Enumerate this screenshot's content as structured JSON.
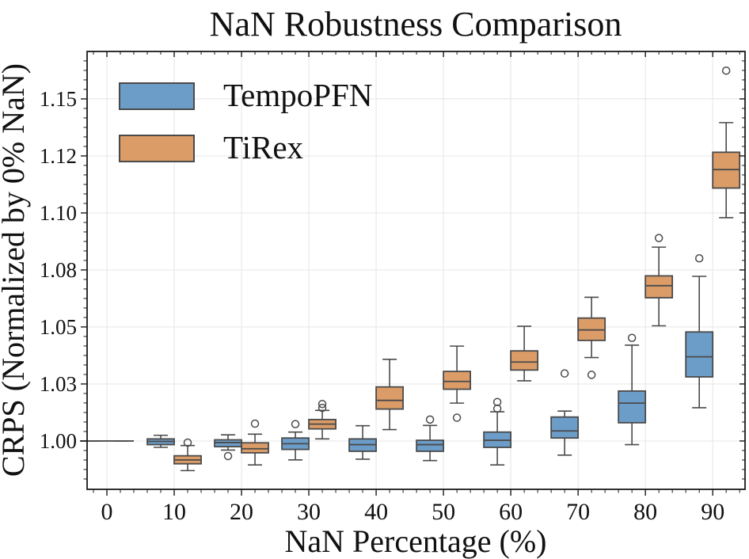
{
  "chart_data": {
    "type": "boxplot",
    "title": "NaN Robustness Comparison",
    "xlabel": "NaN Percentage (%)",
    "ylabel": "CRPS (Normalized by 0% NaN)",
    "categories": [
      "0",
      "10",
      "20",
      "30",
      "40",
      "50",
      "60",
      "70",
      "80",
      "90"
    ],
    "xlim": [
      -0.294,
      9.48
    ],
    "ylim": [
      0.9788,
      1.1708
    ],
    "grid": true,
    "legend_position": "upper-left",
    "yticks": {
      "values": [
        1.0,
        1.025,
        1.05,
        1.075,
        1.1,
        1.125,
        1.15
      ],
      "labels": [
        "1.00",
        "1.03",
        "1.05",
        "1.08",
        "1.10",
        "1.12",
        "1.15"
      ]
    },
    "colors": {
      "tempopfn": "#6C9DC8",
      "tirex": "#DB9C68",
      "box_edge": "#4A4A4A",
      "grid": "#E9E9E9",
      "spine": "#1A1A1A"
    },
    "series": [
      {
        "name": "TempoPFN",
        "color": "#6C9DC8",
        "boxes": [
          {
            "whislo": 1.0,
            "q1": 1.0,
            "med": 1.0,
            "q3": 1.0,
            "whishi": 1.0,
            "fliers": []
          },
          {
            "whislo": 0.9972,
            "q1": 0.9984,
            "med": 0.9998,
            "q3": 1.0009,
            "whishi": 1.0025,
            "fliers": []
          },
          {
            "whislo": 0.996,
            "q1": 0.9975,
            "med": 0.9993,
            "q3": 1.0005,
            "whishi": 1.0027,
            "fliers": [
              0.9934
            ]
          },
          {
            "whislo": 0.9917,
            "q1": 0.9963,
            "med": 0.9988,
            "q3": 1.0013,
            "whishi": 1.0039,
            "fliers": [
              1.0074
            ]
          },
          {
            "whislo": 0.992,
            "q1": 0.9955,
            "med": 0.9984,
            "q3": 1.0009,
            "whishi": 1.0067,
            "fliers": []
          },
          {
            "whislo": 0.9914,
            "q1": 0.9955,
            "med": 0.9984,
            "q3": 1.0003,
            "whishi": 1.0068,
            "fliers": [
              1.0094
            ]
          },
          {
            "whislo": 0.9895,
            "q1": 0.9972,
            "med": 1.0003,
            "q3": 1.0039,
            "whishi": 1.0128,
            "fliers": [
              1.0142,
              1.0171
            ]
          },
          {
            "whislo": 0.9938,
            "q1": 1.0013,
            "med": 1.0044,
            "q3": 1.0105,
            "whishi": 1.0131,
            "fliers": [
              1.0296
            ]
          },
          {
            "whislo": 0.9984,
            "q1": 1.008,
            "med": 1.0166,
            "q3": 1.0219,
            "whishi": 1.042,
            "fliers": [
              1.0452
            ]
          },
          {
            "whislo": 1.0146,
            "q1": 1.0281,
            "med": 1.0369,
            "q3": 1.0478,
            "whishi": 1.0722,
            "fliers": [
              1.0801
            ]
          }
        ]
      },
      {
        "name": "TiRex",
        "color": "#DB9C68",
        "boxes": [
          {
            "whislo": 1.0,
            "q1": 1.0,
            "med": 1.0,
            "q3": 1.0,
            "whishi": 1.0,
            "fliers": []
          },
          {
            "whislo": 0.987,
            "q1": 0.99,
            "med": 0.9917,
            "q3": 0.9935,
            "whishi": 0.998,
            "fliers": [
              0.9993
            ]
          },
          {
            "whislo": 0.9895,
            "q1": 0.9948,
            "med": 0.9966,
            "q3": 0.9992,
            "whishi": 1.003,
            "fliers": [
              1.0076
            ]
          },
          {
            "whislo": 1.0009,
            "q1": 1.0053,
            "med": 1.0074,
            "q3": 1.0094,
            "whishi": 1.0134,
            "fliers": [
              1.0145,
              1.0162
            ]
          },
          {
            "whislo": 1.005,
            "q1": 1.014,
            "med": 1.0178,
            "q3": 1.0237,
            "whishi": 1.0358,
            "fliers": []
          },
          {
            "whislo": 1.0166,
            "q1": 1.0227,
            "med": 1.0261,
            "q3": 1.0305,
            "whishi": 1.0416,
            "fliers": [
              1.0102
            ]
          },
          {
            "whislo": 1.0264,
            "q1": 1.0311,
            "med": 1.0346,
            "q3": 1.0395,
            "whishi": 1.0503,
            "fliers": []
          },
          {
            "whislo": 1.0366,
            "q1": 1.0441,
            "med": 1.0487,
            "q3": 1.0539,
            "whishi": 1.063,
            "fliers": [
              1.029
            ]
          },
          {
            "whislo": 1.0505,
            "q1": 1.0628,
            "med": 1.0681,
            "q3": 1.0724,
            "whishi": 1.085,
            "fliers": [
              1.089
            ]
          },
          {
            "whislo": 1.0979,
            "q1": 1.1109,
            "med": 1.119,
            "q3": 1.1266,
            "whishi": 1.1396,
            "fliers": [
              1.1624
            ]
          }
        ]
      }
    ]
  }
}
